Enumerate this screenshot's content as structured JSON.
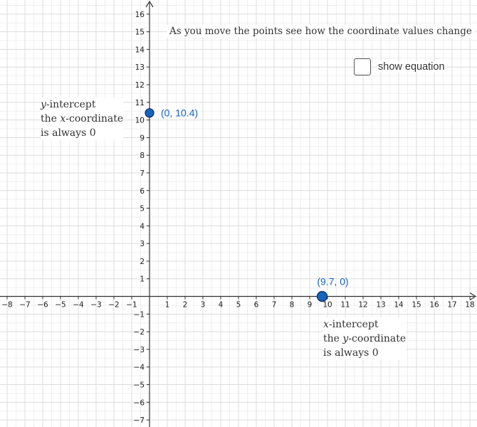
{
  "instruction": "As you move the points see how the coordinate values change",
  "show_equation": {
    "label": "show equation",
    "checked": false
  },
  "y_intercept_note": {
    "line1_var": "y",
    "line1_rest": "-intercept",
    "line2_pre": "the ",
    "line2_var": "x",
    "line2_post": "-coordinate",
    "line3": "is always 0"
  },
  "x_intercept_note": {
    "line1_var": "x",
    "line1_rest": "-intercept",
    "line2_pre": "the ",
    "line2_var": "y",
    "line2_post": "-coordinate",
    "line3": "is always 0"
  },
  "chart_data": {
    "type": "scatter",
    "xlim": [
      -8.4,
      18.4
    ],
    "ylim": [
      -7.4,
      16.8
    ],
    "grid": true,
    "minor_grid_step": 0.5,
    "x_ticks": [
      -8,
      -7,
      -6,
      -5,
      -4,
      -3,
      -2,
      -1,
      1,
      2,
      3,
      4,
      5,
      6,
      7,
      8,
      9,
      10,
      11,
      12,
      13,
      14,
      15,
      16,
      17,
      18
    ],
    "y_ticks": [
      -7,
      -6,
      -5,
      -4,
      -3,
      -2,
      -1,
      1,
      2,
      3,
      4,
      5,
      6,
      7,
      8,
      9,
      10,
      11,
      12,
      13,
      14,
      15,
      16
    ],
    "points": [
      {
        "name": "y-intercept point",
        "x": 0,
        "y": 10.4,
        "label": "(0, 10.4)"
      },
      {
        "name": "x-intercept point",
        "x": 9.7,
        "y": 0,
        "label": "(9.7, 0)"
      }
    ],
    "colors": {
      "point_fill": "#1565c0",
      "point_stroke": "#0d2b5a",
      "label": "#1565c0",
      "axis": "#333333",
      "grid_major": "#dcdcdc",
      "grid_minor": "#efefef"
    }
  }
}
